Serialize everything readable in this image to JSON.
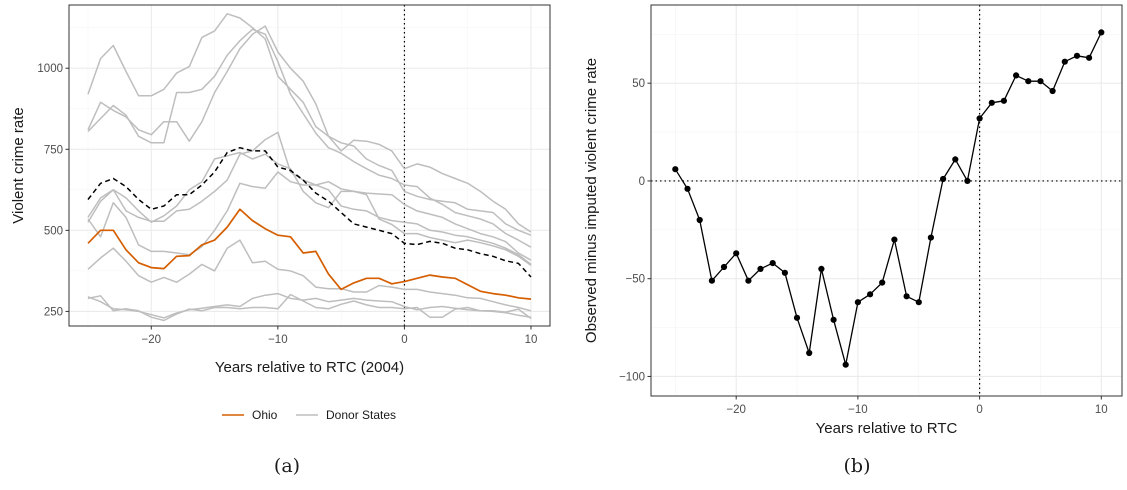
{
  "colors": {
    "ohio": "#D55E00",
    "donor": "#BEBEBE",
    "synthetic": "#000000",
    "grid": "#EBEBEB",
    "grid_minor": "#F4F4F4",
    "border": "#333333"
  },
  "captions": [
    "(a)",
    "(b)"
  ],
  "chart_data": [
    {
      "type": "line",
      "xlabel": "Years relative to RTC (2004)",
      "ylabel": "Violent crime rate",
      "xlim": [
        -26.5,
        11.5
      ],
      "ylim": [
        205,
        1195
      ],
      "xticks": [
        -20,
        -10,
        0,
        10
      ],
      "yticks": [
        250,
        500,
        750,
        1000
      ],
      "grid": true,
      "legend": {
        "position": "bottom",
        "entries": [
          "Ohio",
          "Donor States"
        ]
      },
      "reference_lines": [
        {
          "axis": "x",
          "value": 0,
          "style": "dotted"
        }
      ],
      "x": [
        -25,
        -24,
        -23,
        -22,
        -21,
        -20,
        -19,
        -18,
        -17,
        -16,
        -15,
        -14,
        -13,
        -12,
        -11,
        -10,
        -9,
        -8,
        -7,
        -6,
        -5,
        -4,
        -3,
        -2,
        -1,
        0,
        1,
        2,
        3,
        4,
        5,
        6,
        7,
        8,
        9,
        10
      ],
      "series": [
        {
          "name": "Ohio",
          "role": "ohio",
          "values": [
            460,
            500,
            500,
            440,
            400,
            385,
            382,
            420,
            422,
            455,
            470,
            510,
            565,
            530,
            505,
            485,
            480,
            430,
            435,
            365,
            318,
            338,
            352,
            352,
            335,
            342,
            352,
            362,
            356,
            352,
            332,
            312,
            305,
            300,
            292,
            288
          ]
        },
        {
          "role": "synthetic",
          "values": [
            595,
            645,
            660,
            635,
            595,
            565,
            575,
            610,
            610,
            640,
            680,
            740,
            755,
            745,
            745,
            695,
            685,
            655,
            615,
            590,
            555,
            520,
            510,
            500,
            490,
            460,
            456,
            466,
            460,
            445,
            440,
            428,
            420,
            406,
            398,
            356
          ]
        },
        {
          "role": "donor",
          "values": [
            920,
            1030,
            1070,
            990,
            915,
            915,
            935,
            985,
            1005,
            1095,
            1115,
            1168,
            1155,
            1125,
            1090,
            975,
            935,
            895,
            820,
            790,
            745,
            778,
            775,
            765,
            745,
            690,
            705,
            695,
            675,
            660,
            645,
            620,
            590,
            565,
            520,
            495
          ]
        },
        {
          "role": "donor",
          "values": [
            810,
            895,
            870,
            850,
            810,
            795,
            835,
            835,
            775,
            835,
            925,
            990,
            1060,
            1105,
            1130,
            1050,
            1000,
            960,
            890,
            790,
            770,
            760,
            720,
            700,
            685,
            620,
            605,
            595,
            590,
            585,
            565,
            560,
            555,
            520,
            500,
            485
          ]
        },
        {
          "role": "donor",
          "values": [
            805,
            845,
            885,
            855,
            790,
            770,
            770,
            925,
            925,
            935,
            975,
            1040,
            1085,
            1120,
            1105,
            1020,
            920,
            860,
            800,
            755,
            738,
            712,
            690,
            670,
            660,
            640,
            635,
            600,
            580,
            555,
            545,
            535,
            520,
            490,
            470,
            448
          ]
        },
        {
          "role": "donor",
          "values": [
            540,
            600,
            625,
            600,
            560,
            525,
            545,
            575,
            625,
            650,
            720,
            730,
            740,
            720,
            735,
            705,
            690,
            620,
            585,
            570,
            620,
            620,
            615,
            612,
            610,
            580,
            560,
            550,
            540,
            520,
            505,
            490,
            480,
            465,
            430,
            408
          ]
        },
        {
          "role": "donor",
          "values": [
            525,
            590,
            625,
            560,
            540,
            528,
            528,
            560,
            565,
            590,
            620,
            655,
            735,
            745,
            780,
            802,
            680,
            655,
            640,
            625,
            575,
            565,
            560,
            540,
            530,
            525,
            520,
            500,
            495,
            485,
            480,
            470,
            460,
            445,
            425,
            395
          ]
        },
        {
          "role": "donor",
          "values": [
            535,
            480,
            585,
            540,
            455,
            435,
            435,
            430,
            425,
            450,
            500,
            560,
            645,
            635,
            630,
            680,
            650,
            640,
            640,
            650,
            628,
            620,
            610,
            535,
            518,
            490,
            490,
            478,
            470,
            462,
            470,
            462,
            452,
            440,
            420,
            392
          ]
        },
        {
          "role": "donor",
          "values": [
            380,
            415,
            445,
            405,
            360,
            340,
            355,
            340,
            365,
            395,
            375,
            445,
            470,
            400,
            405,
            380,
            375,
            360,
            325,
            320,
            320,
            310,
            310,
            330,
            325,
            318,
            318,
            310,
            305,
            300,
            292,
            290,
            280,
            270,
            262,
            252
          ]
        },
        {
          "role": "donor",
          "values": [
            290,
            298,
            252,
            258,
            252,
            232,
            222,
            242,
            257,
            252,
            262,
            262,
            258,
            262,
            262,
            258,
            302,
            282,
            262,
            258,
            272,
            282,
            270,
            262,
            262,
            258,
            262,
            232,
            232,
            257,
            262,
            252,
            252,
            248,
            257,
            228
          ]
        },
        {
          "role": "donor",
          "values": [
            295,
            280,
            258,
            255,
            250,
            240,
            230,
            245,
            255,
            260,
            265,
            270,
            265,
            290,
            300,
            305,
            290,
            285,
            290,
            280,
            285,
            290,
            285,
            282,
            280,
            265,
            255,
            262,
            265,
            260,
            255,
            252,
            250,
            246,
            238,
            232
          ]
        }
      ]
    },
    {
      "type": "line",
      "xlabel": "Years relative to RTC",
      "ylabel": "Observed minus imputed violent crime rate",
      "xlim": [
        -27,
        11.7
      ],
      "ylim": [
        -110,
        90
      ],
      "xticks": [
        -20,
        -10,
        0,
        10
      ],
      "yticks": [
        -100,
        -50,
        0,
        50
      ],
      "grid": true,
      "markers": "point",
      "reference_lines": [
        {
          "axis": "x",
          "value": 0,
          "style": "dotted"
        },
        {
          "axis": "y",
          "value": 0,
          "style": "dotted"
        }
      ],
      "x": [
        -25,
        -24,
        -23,
        -22,
        -21,
        -20,
        -19,
        -18,
        -17,
        -16,
        -15,
        -14,
        -13,
        -12,
        -11,
        -10,
        -9,
        -8,
        -7,
        -6,
        -5,
        -4,
        -3,
        -2,
        -1,
        0,
        1,
        2,
        3,
        4,
        5,
        6,
        7,
        8,
        9,
        10
      ],
      "values": [
        6,
        -4,
        -20,
        -51,
        -44,
        -37,
        -51,
        -45,
        -42,
        -47,
        -70,
        -88,
        -45,
        -71,
        -94,
        -62,
        -58,
        -52,
        -30,
        -59,
        -62,
        -29,
        1,
        11,
        0,
        32,
        40,
        41,
        54,
        51,
        51,
        46,
        61,
        64,
        63,
        76
      ]
    }
  ]
}
